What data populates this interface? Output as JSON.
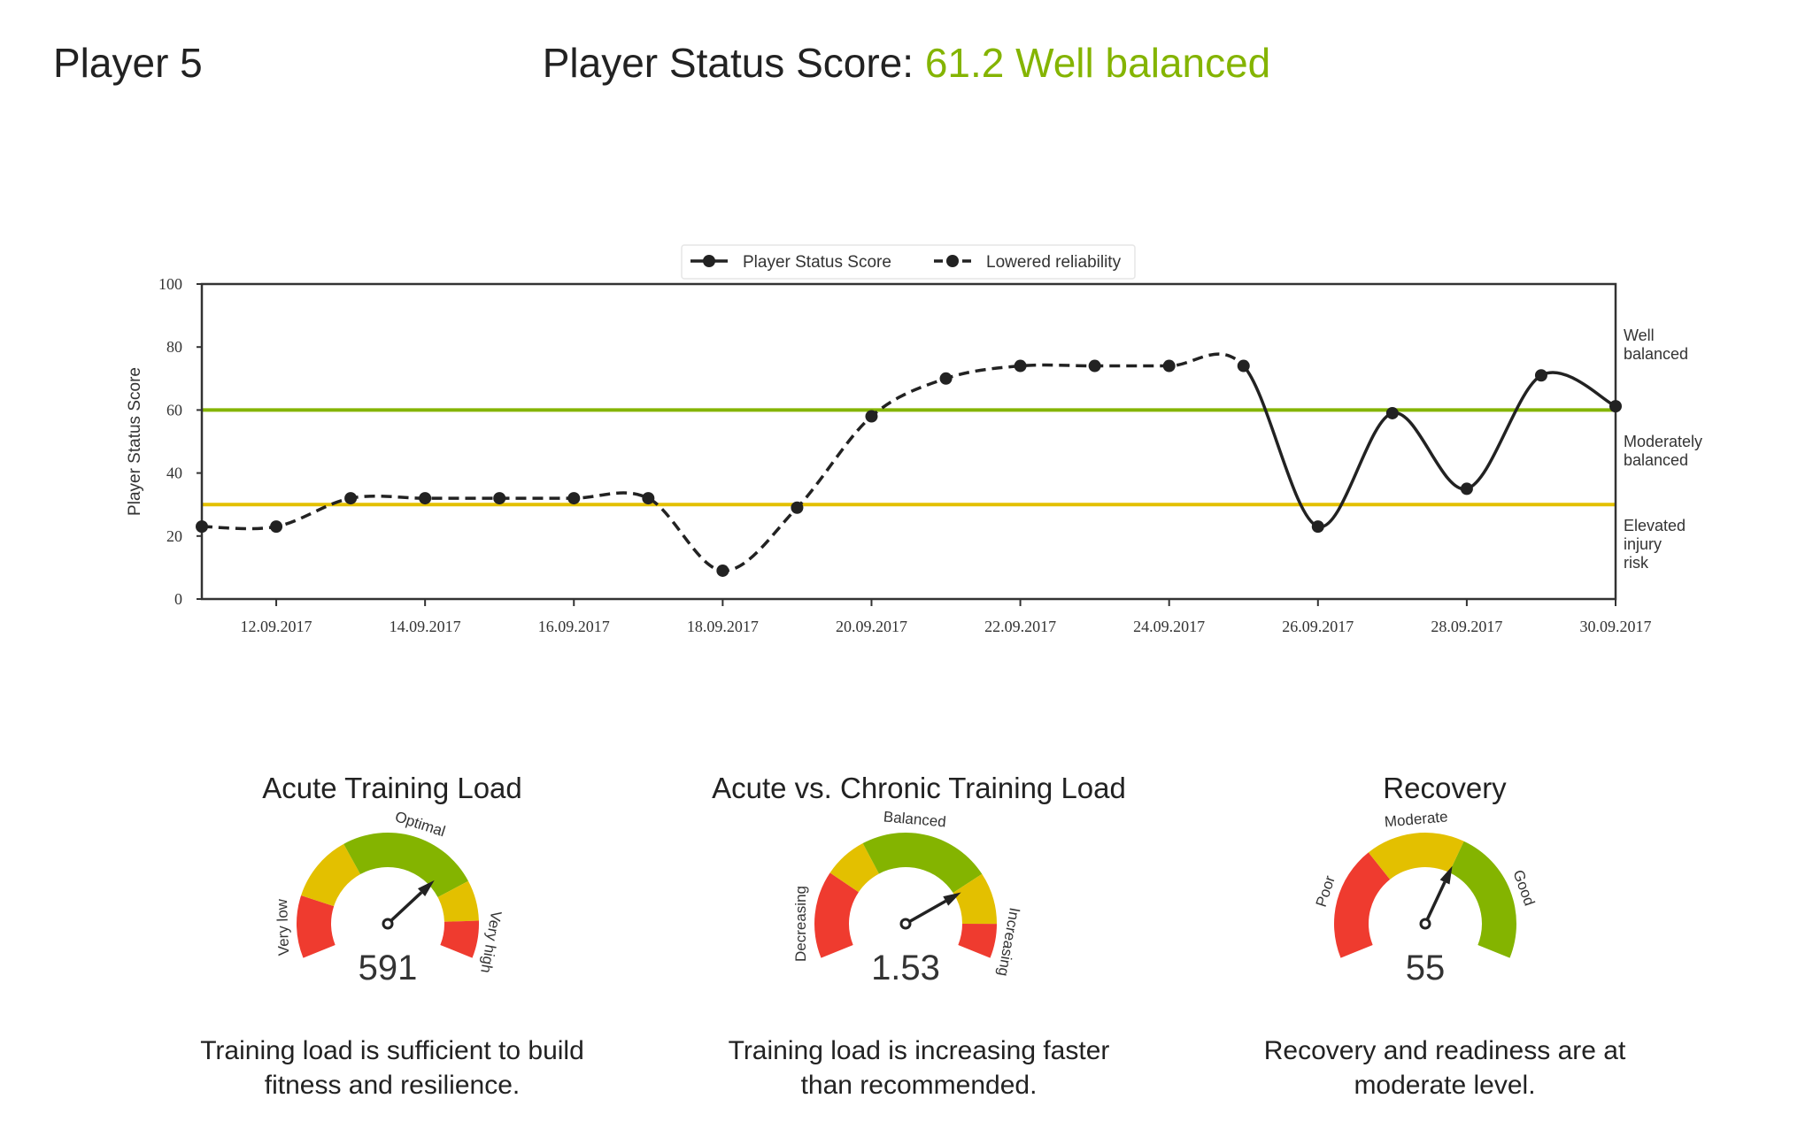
{
  "header": {
    "player": "Player 5",
    "title_label": "Player Status Score:",
    "score_text": "61.2 Well balanced",
    "score_color": "#84b400"
  },
  "colors": {
    "green": "#84b400",
    "yellow": "#e3c000",
    "red": "#ef3b2f",
    "line": "#222222"
  },
  "chart_data": {
    "type": "line",
    "ylabel": "Player Status Score",
    "ylim": [
      0,
      100
    ],
    "yticks": [
      "0",
      "20",
      "40",
      "60",
      "80",
      "100"
    ],
    "xlim": [
      "11.09.2017",
      "30.09.2017"
    ],
    "xticks": [
      "12.09.2017",
      "14.09.2017",
      "16.09.2017",
      "18.09.2017",
      "20.09.2017",
      "22.09.2017",
      "24.09.2017",
      "26.09.2017",
      "28.09.2017",
      "30.09.2017"
    ],
    "x": [
      "11.09.2017",
      "12.09.2017",
      "13.09.2017",
      "14.09.2017",
      "15.09.2017",
      "16.09.2017",
      "17.09.2017",
      "18.09.2017",
      "19.09.2017",
      "20.09.2017",
      "21.09.2017",
      "22.09.2017",
      "23.09.2017",
      "24.09.2017",
      "25.09.2017",
      "26.09.2017",
      "27.09.2017",
      "28.09.2017",
      "29.09.2017",
      "30.09.2017"
    ],
    "series": [
      {
        "name": "Lowered reliability",
        "style": "dashed",
        "from_index": 0,
        "to_index": 14
      },
      {
        "name": "Player Status Score",
        "style": "solid",
        "from_index": 14,
        "to_index": 19
      }
    ],
    "values": [
      23,
      23,
      32,
      32,
      32,
      32,
      32,
      9,
      29,
      58,
      70,
      74,
      74,
      74,
      74,
      23,
      59,
      35,
      71,
      61.2
    ],
    "thresholds": [
      {
        "value": 60,
        "color": "#84b400"
      },
      {
        "value": 30,
        "color": "#e3c000"
      }
    ],
    "zone_labels": [
      {
        "text": "Well\nbalanced",
        "lines": [
          "Well",
          "balanced"
        ]
      },
      {
        "text": "Moderately\nbalanced",
        "lines": [
          "Moderately",
          "balanced"
        ]
      },
      {
        "text": "Elevated\ninjury\nrisk",
        "lines": [
          "Elevated",
          "injury",
          "risk"
        ]
      }
    ],
    "legend": {
      "placement": "top-center",
      "entries": [
        "Player Status Score",
        "Lowered reliability"
      ]
    },
    "grid": false
  },
  "gauges": [
    {
      "title": "Acute Training Load",
      "value": "591",
      "needle_fraction": 0.71,
      "zones": [
        {
          "to": 0.179,
          "color": "red"
        },
        {
          "to": 0.371,
          "color": "yellow"
        },
        {
          "to": 0.777,
          "color": "green"
        },
        {
          "to": 0.893,
          "color": "yellow"
        },
        {
          "to": 1,
          "color": "red"
        }
      ],
      "labels": [
        "Very low",
        "Optimal",
        "Very high"
      ],
      "description": [
        "Training load is sufficient to build",
        "fitness and resilience."
      ]
    },
    {
      "title": "Acute vs. Chronic Training Load",
      "value": "1.53",
      "needle_fraction": 0.77,
      "zones": [
        {
          "to": 0.25,
          "color": "red"
        },
        {
          "to": 0.375,
          "color": "yellow"
        },
        {
          "to": 0.754,
          "color": "green"
        },
        {
          "to": 0.902,
          "color": "yellow"
        },
        {
          "to": 1,
          "color": "red"
        }
      ],
      "labels": [
        "Decreasing",
        "Balanced",
        "Increasing"
      ],
      "description": [
        "Training load is increasing faster",
        "than recommended."
      ]
    },
    {
      "title": "Recovery",
      "value": "55",
      "needle_fraction": 0.612,
      "zones": [
        {
          "to": 0.328,
          "color": "red"
        },
        {
          "to": 0.612,
          "color": "yellow"
        },
        {
          "to": 1,
          "color": "green"
        }
      ],
      "labels": [
        "Poor",
        "Moderate",
        "Good"
      ],
      "description": [
        "Recovery and readiness are at",
        "moderate level."
      ]
    }
  ]
}
